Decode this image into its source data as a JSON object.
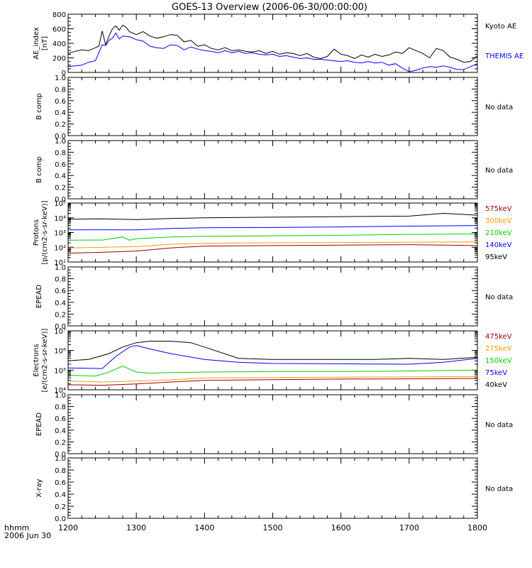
{
  "title": "GOES-13 Overview (2006-06-30/00:00:00)",
  "time_axis": {
    "ticks": [
      "1200",
      "1300",
      "1400",
      "1500",
      "1600",
      "1700",
      "1800"
    ],
    "label_line1": "hhmm",
    "label_line2": "2006 Jun 30"
  },
  "colors": {
    "black": "#000000",
    "blue": "#0000ff",
    "green": "#00d000",
    "orange": "#ff9900",
    "darkred": "#990000",
    "axis": "#000000"
  },
  "chart_data": [
    {
      "type": "line",
      "panel": "ae",
      "ylabel": [
        "AE_index",
        "[nT]"
      ],
      "ylim": [
        0,
        800
      ],
      "yticks": [
        "0",
        "200",
        "400",
        "600",
        "800"
      ],
      "x_range": [
        1200,
        1800
      ],
      "series": [
        {
          "name": "Kyoto AE",
          "color": "#000000",
          "x": [
            1200,
            1210,
            1220,
            1230,
            1240,
            1245,
            1250,
            1255,
            1260,
            1265,
            1270,
            1275,
            1280,
            1285,
            1290,
            1300,
            1310,
            1320,
            1330,
            1340,
            1350,
            1360,
            1370,
            1380,
            1390,
            1400,
            1410,
            1420,
            1430,
            1440,
            1450,
            1460,
            1470,
            1480,
            1490,
            1500,
            1510,
            1520,
            1530,
            1540,
            1550,
            1560,
            1570,
            1580,
            1590,
            1600,
            1610,
            1620,
            1630,
            1640,
            1650,
            1660,
            1670,
            1680,
            1690,
            1700,
            1710,
            1720,
            1730,
            1740,
            1750,
            1760,
            1770,
            1780,
            1790,
            1800
          ],
          "values": [
            260,
            290,
            310,
            300,
            340,
            360,
            570,
            380,
            500,
            600,
            640,
            580,
            650,
            620,
            560,
            520,
            560,
            500,
            470,
            490,
            520,
            510,
            420,
            440,
            360,
            380,
            330,
            310,
            340,
            300,
            310,
            290,
            280,
            300,
            260,
            290,
            250,
            270,
            260,
            230,
            260,
            210,
            190,
            220,
            320,
            250,
            230,
            190,
            240,
            210,
            250,
            220,
            240,
            280,
            260,
            340,
            300,
            260,
            200,
            330,
            300,
            210,
            180,
            140,
            150,
            230
          ]
        },
        {
          "name": "THEMIS AE",
          "color": "#0000ff",
          "x": [
            1200,
            1210,
            1220,
            1230,
            1240,
            1250,
            1255,
            1260,
            1265,
            1270,
            1275,
            1280,
            1290,
            1300,
            1310,
            1320,
            1330,
            1340,
            1350,
            1360,
            1370,
            1380,
            1390,
            1400,
            1410,
            1420,
            1430,
            1440,
            1450,
            1460,
            1470,
            1480,
            1490,
            1500,
            1510,
            1520,
            1530,
            1540,
            1550,
            1560,
            1570,
            1580,
            1590,
            1600,
            1610,
            1620,
            1630,
            1640,
            1650,
            1660,
            1670,
            1680,
            1690,
            1700,
            1710,
            1720,
            1730,
            1740,
            1750,
            1760,
            1770,
            1780,
            1790,
            1800
          ],
          "values": [
            80,
            90,
            100,
            140,
            160,
            380,
            370,
            440,
            470,
            540,
            460,
            500,
            490,
            450,
            430,
            360,
            340,
            330,
            380,
            370,
            310,
            350,
            320,
            300,
            290,
            270,
            300,
            270,
            290,
            260,
            270,
            250,
            240,
            250,
            220,
            230,
            210,
            190,
            200,
            180,
            180,
            170,
            160,
            150,
            160,
            140,
            130,
            150,
            130,
            140,
            100,
            120,
            60,
            10,
            30,
            60,
            80,
            70,
            90,
            70,
            40,
            40,
            80,
            120
          ]
        }
      ]
    },
    {
      "type": "line",
      "panel": "bcomp1",
      "ylabel": [
        "B comp"
      ],
      "ylim": [
        0,
        1
      ],
      "yticks": [
        "0.0",
        "0.2",
        "0.4",
        "0.6",
        "0.8",
        "1.0"
      ],
      "series": [],
      "annotation": "No data"
    },
    {
      "type": "line",
      "panel": "bcomp2",
      "ylabel": [
        "B comp"
      ],
      "ylim": [
        0,
        1
      ],
      "yticks": [
        "0.0",
        "0.2",
        "0.4",
        "0.6",
        "0.8",
        "1.0"
      ],
      "series": [],
      "annotation": "No data"
    },
    {
      "type": "line",
      "panel": "protons",
      "ylabel": [
        "Protons",
        "[p/(cm2-s-sr-keV)]"
      ],
      "log_scale": true,
      "ylim_exp": [
        1,
        5
      ],
      "yticks": [
        "10¹",
        "10²",
        "10³",
        "10⁴",
        "10⁵"
      ],
      "x_range": [
        1200,
        1800
      ],
      "series": [
        {
          "name": "575keV",
          "color": "#990000",
          "x": [
            1200,
            1250,
            1300,
            1350,
            1400,
            1500,
            1600,
            1700,
            1800
          ],
          "values": [
            40,
            45,
            55,
            90,
            120,
            130,
            140,
            150,
            130
          ]
        },
        {
          "name": "300keV",
          "color": "#ff9900",
          "x": [
            1200,
            1250,
            1300,
            1350,
            1400,
            1500,
            1600,
            1700,
            1800
          ],
          "values": [
            90,
            100,
            110,
            160,
            190,
            200,
            210,
            220,
            230
          ]
        },
        {
          "name": "210keV",
          "color": "#00d000",
          "x": [
            1200,
            1250,
            1280,
            1290,
            1300,
            1350,
            1400,
            1500,
            1600,
            1700,
            1800
          ],
          "values": [
            300,
            310,
            500,
            300,
            380,
            500,
            550,
            600,
            650,
            750,
            800
          ]
        },
        {
          "name": "140keV",
          "color": "#0000ff",
          "x": [
            1200,
            1250,
            1300,
            1350,
            1400,
            1500,
            1600,
            1700,
            1800
          ],
          "values": [
            1500,
            1550,
            1500,
            1900,
            2100,
            2200,
            2400,
            2700,
            3000
          ]
        },
        {
          "name": "95keV",
          "color": "#000000",
          "x": [
            1200,
            1250,
            1300,
            1350,
            1400,
            1500,
            1600,
            1700,
            1750,
            1800
          ],
          "values": [
            8000,
            8500,
            7500,
            9000,
            10000,
            11000,
            12000,
            13000,
            20000,
            15000
          ]
        }
      ]
    },
    {
      "type": "line",
      "panel": "epead1",
      "ylabel": [
        "EPEAD"
      ],
      "ylim": [
        0,
        1
      ],
      "yticks": [
        "0.0",
        "0.2",
        "0.4",
        "0.6",
        "0.8",
        "1.0"
      ],
      "series": [],
      "annotation": "No data"
    },
    {
      "type": "line",
      "panel": "electrons",
      "ylabel": [
        "Electrons",
        "[e/(cm2-s-sr-keV)]"
      ],
      "log_scale": true,
      "ylim_exp": [
        4,
        7
      ],
      "yticks": [
        "10⁴",
        "10⁵",
        "10⁶",
        "10⁷"
      ],
      "x_range": [
        1200,
        1800
      ],
      "series": [
        {
          "name": "475keV",
          "color": "#990000",
          "x": [
            1200,
            1250,
            1300,
            1350,
            1400,
            1500,
            1600,
            1700,
            1800
          ],
          "values": [
            18000,
            17000,
            20000,
            25000,
            30000,
            33000,
            35000,
            36000,
            38000
          ]
        },
        {
          "name": "275keV",
          "color": "#ff9900",
          "x": [
            1200,
            1250,
            1300,
            1350,
            1400,
            1500,
            1600,
            1700,
            1800
          ],
          "values": [
            28000,
            25000,
            28000,
            32000,
            40000,
            42000,
            44000,
            45000,
            48000
          ]
        },
        {
          "name": "150keV",
          "color": "#00d000",
          "x": [
            1200,
            1240,
            1260,
            1280,
            1300,
            1320,
            1350,
            1400,
            1500,
            1600,
            1700,
            1800
          ],
          "values": [
            55000,
            50000,
            80000,
            160000,
            80000,
            70000,
            75000,
            80000,
            85000,
            85000,
            90000,
            100000
          ]
        },
        {
          "name": "75keV",
          "color": "#0000ff",
          "x": [
            1200,
            1250,
            1270,
            1290,
            1300,
            1320,
            1350,
            1400,
            1450,
            1500,
            1600,
            1700,
            1750,
            1800
          ],
          "values": [
            130000,
            120000,
            500000,
            1500000,
            1800000,
            1200000,
            700000,
            350000,
            250000,
            220000,
            210000,
            200000,
            250000,
            400000
          ]
        },
        {
          "name": "40keV",
          "color": "#000000",
          "x": [
            1200,
            1230,
            1260,
            1280,
            1300,
            1320,
            1350,
            1380,
            1400,
            1450,
            1500,
            1550,
            1600,
            1650,
            1700,
            1750,
            1800
          ],
          "values": [
            300000,
            350000,
            700000,
            1500000,
            2500000,
            3000000,
            3000000,
            2500000,
            1500000,
            400000,
            350000,
            350000,
            350000,
            350000,
            400000,
            350000,
            450000
          ]
        }
      ]
    },
    {
      "type": "line",
      "panel": "epead2",
      "ylabel": [
        "EPEAD"
      ],
      "ylim": [
        0,
        1
      ],
      "yticks": [
        "0.0",
        "0.2",
        "0.4",
        "0.6",
        "0.8",
        "1.0"
      ],
      "series": [],
      "annotation": "No data"
    },
    {
      "type": "line",
      "panel": "xray",
      "ylabel": [
        "X-ray"
      ],
      "ylim": [
        0,
        1
      ],
      "yticks": [
        "0.0",
        "0.2",
        "0.4",
        "0.6",
        "0.8",
        "1.0"
      ],
      "series": [],
      "annotation": "No data"
    }
  ]
}
